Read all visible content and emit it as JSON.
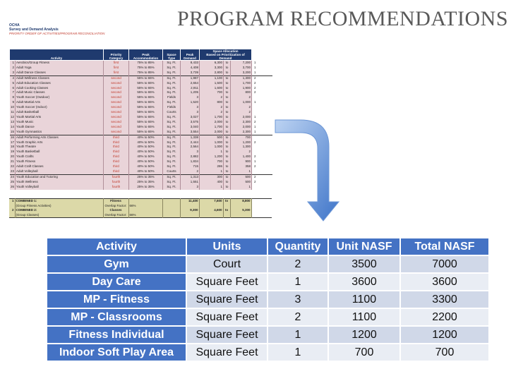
{
  "title": "PROGRAM RECOMMENDATIONS",
  "sheet": {
    "org": "OCHA",
    "subtitle": "Survey and Demand Analysis",
    "caption": "PRIORITY ORDER OF ACTIVITIES/PROGRAM RECONCILIATION",
    "headers": {
      "activity": "Activity",
      "priority": "Priority Category",
      "peak": "Peak Accommodation",
      "space_type": "Space Type",
      "peak_demand": "Peak Demand",
      "allocation": "Space Allocation",
      "allocation_sub": "Based on Prioritization of Demand"
    },
    "rows": [
      {
        "n": "1",
        "activity": "Aerobics/Group Fitness",
        "cat": "first",
        "acc": "75%  to  85%",
        "type": "Sq. Ft.",
        "demand": "8,433",
        "a1": "6,300",
        "to": "to",
        "a2": "7,200",
        "side": "1"
      },
      {
        "n": "2",
        "activity": "Adult Yoga",
        "cat": "first",
        "acc": "75%  to  85%",
        "type": "Sq. Ft.",
        "demand": "4,408",
        "a1": "3,300",
        "to": "to",
        "a2": "3,700",
        "side": "1"
      },
      {
        "n": "3",
        "activity": "Adult Dance Classes",
        "cat": "first",
        "acc": "75%  to  85%",
        "type": "Sq. Ft.",
        "demand": "3,739",
        "a1": "2,800",
        "to": "to",
        "a2": "3,200",
        "side": "1"
      },
      {
        "n": "4",
        "activity": "Adult Wellness Classes",
        "cat": "second",
        "acc": "55%  to  65%",
        "type": "Sq. Ft.",
        "demand": "1,987",
        "a1": "1,100",
        "to": "to",
        "a2": "1,300",
        "side": "2"
      },
      {
        "n": "5",
        "activity": "Adult Education Classes",
        "cat": "second",
        "acc": "55%  to  65%",
        "type": "Sq. Ft.",
        "demand": "2,654",
        "a1": "1,500",
        "to": "to",
        "a2": "1,700",
        "side": "2"
      },
      {
        "n": "6",
        "activity": "Adult Cooking Classes",
        "cat": "second",
        "acc": "55%  to  65%",
        "type": "Sq. Ft.",
        "demand": "2,911",
        "a1": "1,600",
        "to": "to",
        "a2": "1,900",
        "side": "2"
      },
      {
        "n": "7",
        "activity": "Adult Music Classes",
        "cat": "second",
        "acc": "55%  to  65%",
        "type": "Sq. Ft.",
        "demand": "1,205",
        "a1": "700",
        "to": "to",
        "a2": "800",
        "side": "2"
      },
      {
        "n": "8",
        "activity": "Youth Soccer (Outdoor)",
        "cat": "second",
        "acc": "55%  to  65%",
        "type": "Fields",
        "demand": "3",
        "a1": "2",
        "to": "to",
        "a2": "2",
        "side": ""
      },
      {
        "n": "9",
        "activity": "Adult Martial Arts",
        "cat": "second",
        "acc": "55%  to  65%",
        "type": "Sq. Ft.",
        "demand": "1,520",
        "a1": "800",
        "to": "to",
        "a2": "1,000",
        "side": "1"
      },
      {
        "n": "10",
        "activity": "Youth Soccer (Indoor)",
        "cat": "second",
        "acc": "55%  to  65%",
        "type": "Fields",
        "demand": "3",
        "a1": "2",
        "to": "to",
        "a2": "2",
        "side": ""
      },
      {
        "n": "11",
        "activity": "Adult Basketball",
        "cat": "second",
        "acc": "55%  to  65%",
        "type": "Courts",
        "demand": "3",
        "a1": "2",
        "to": "to",
        "a2": "2",
        "side": ""
      },
      {
        "n": "12",
        "activity": "Youth Martial Arts",
        "cat": "second",
        "acc": "55%  to  65%",
        "type": "Sq. Ft.",
        "demand": "3,027",
        "a1": "1,700",
        "to": "to",
        "a2": "2,000",
        "side": "1"
      },
      {
        "n": "13",
        "activity": "Youth Music",
        "cat": "second",
        "acc": "55%  to  65%",
        "type": "Sq. Ft.",
        "demand": "3,575",
        "a1": "2,000",
        "to": "to",
        "a2": "2,300",
        "side": "2"
      },
      {
        "n": "14",
        "activity": "Youth Dance",
        "cat": "second",
        "acc": "55%  to  65%",
        "type": "Sq. Ft.",
        "demand": "3,040",
        "a1": "1,700",
        "to": "to",
        "a2": "2,000",
        "side": "1"
      },
      {
        "n": "15",
        "activity": "Youth Gymnastics",
        "cat": "second",
        "acc": "55%  to  65%",
        "type": "Sq. Ft.",
        "demand": "3,554",
        "a1": "2,000",
        "to": "to",
        "a2": "2,300",
        "side": "1"
      },
      {
        "n": "16",
        "activity": "Adult Performing Arts Classes",
        "cat": "third",
        "acc": "40%  to  50%",
        "type": "Sq. Ft.",
        "demand": "1,338",
        "a1": "500",
        "to": "to",
        "a2": "700",
        "side": ""
      },
      {
        "n": "17",
        "activity": "Youth Graphic Arts",
        "cat": "third",
        "acc": "40%  to  50%",
        "type": "Sq. Ft.",
        "demand": "2,444",
        "a1": "1,000",
        "to": "to",
        "a2": "1,200",
        "side": "2"
      },
      {
        "n": "18",
        "activity": "Youth Theatre",
        "cat": "third",
        "acc": "40%  to  50%",
        "type": "Sq. Ft.",
        "demand": "2,564",
        "a1": "1,000",
        "to": "to",
        "a2": "1,300",
        "side": ""
      },
      {
        "n": "19",
        "activity": "Youth Basketball",
        "cat": "third",
        "acc": "40%  to  50%",
        "type": "Sq. Ft.",
        "demand": "3",
        "a1": "1",
        "to": "to",
        "a2": "2",
        "side": ""
      },
      {
        "n": "20",
        "activity": "Youth Crafts",
        "cat": "third",
        "acc": "40%  to  50%",
        "type": "Sq. Ft.",
        "demand": "2,882",
        "a1": "1,200",
        "to": "to",
        "a2": "1,400",
        "side": "2"
      },
      {
        "n": "21",
        "activity": "Youth Fitness",
        "cat": "third",
        "acc": "40%  to  50%",
        "type": "Sq. Ft.",
        "demand": "1,834",
        "a1": "700",
        "to": "to",
        "a2": "900",
        "side": "1"
      },
      {
        "n": "22",
        "activity": "Adult Craft Classes",
        "cat": "third",
        "acc": "40%  to  50%",
        "type": "Sq. Ft.",
        "demand": "715",
        "a1": "286",
        "to": "to",
        "a2": "358",
        "side": "2"
      },
      {
        "n": "23",
        "activity": "Adult Volleyball",
        "cat": "third",
        "acc": "40%  to  50%",
        "type": "Courts",
        "demand": "2",
        "a1": "1",
        "to": "to",
        "a2": "1",
        "side": ""
      },
      {
        "n": "24",
        "activity": "Youth Education and Tutoring",
        "cat": "fourth",
        "acc": "25%  to  35%",
        "type": "Sq. Ft.",
        "demand": "1,313",
        "a1": "300",
        "to": "to",
        "a2": "500",
        "side": "2"
      },
      {
        "n": "25",
        "activity": "Youth Wellness",
        "cat": "fourth",
        "acc": "25%  to  35%",
        "type": "Sq. Ft.",
        "demand": "1,551",
        "a1": "400",
        "to": "to",
        "a2": "500",
        "side": "2"
      },
      {
        "n": "26",
        "activity": "Youth Volleyball",
        "cat": "fourth",
        "acc": "25%  to  35%",
        "type": "Sq. Ft.",
        "demand": "3",
        "a1": "1",
        "to": "to",
        "a2": "1",
        "side": ""
      }
    ],
    "combined": [
      {
        "n": "1",
        "label": "COMBINED 1:",
        "cat": "Fitness",
        "demand": "11,400",
        "a1": "7,600",
        "to": "to",
        "a2": "8,800"
      },
      {
        "n": "",
        "label": "(Group Fitness Activities)",
        "cat": "Overlap Factor:",
        "pct": "66%",
        "demand": "",
        "a1": "",
        "to": "",
        "a2": ""
      },
      {
        "n": "2",
        "label": "COMBINED 2:",
        "cat": "Classes",
        "demand": "9,300",
        "a1": "4,600",
        "to": "to",
        "a2": "5,300"
      },
      {
        "n": "",
        "label": "(Group Classes)",
        "cat": "Overlap Factor:",
        "pct": "66%",
        "demand": "",
        "a1": "",
        "to": "",
        "a2": ""
      }
    ]
  },
  "summary": {
    "headers": [
      "Activity",
      "Units",
      "Quantity",
      "Unit NASF",
      "Total NASF"
    ],
    "rows": [
      {
        "activity": "Gym",
        "units": "Court",
        "quantity": "2",
        "unit_nasf": "3500",
        "total_nasf": "7000"
      },
      {
        "activity": "Day Care",
        "units": "Square Feet",
        "quantity": "1",
        "unit_nasf": "3600",
        "total_nasf": "3600"
      },
      {
        "activity": "MP -  Fitness",
        "units": "Square Feet",
        "quantity": "3",
        "unit_nasf": "1100",
        "total_nasf": "3300"
      },
      {
        "activity": "MP - Classrooms",
        "units": "Square Feet",
        "quantity": "2",
        "unit_nasf": "1100",
        "total_nasf": "2200"
      },
      {
        "activity": "Fitness Individual",
        "units": "Square Feet",
        "quantity": "1",
        "unit_nasf": "1200",
        "total_nasf": "1200"
      },
      {
        "activity": "Indoor Soft Play Area",
        "units": "Square Feet",
        "quantity": "1",
        "unit_nasf": "700",
        "total_nasf": "700"
      }
    ]
  },
  "colors": {
    "header_blue": "#4472c4",
    "row_even": "#d0d8e8",
    "row_odd": "#e9edf4",
    "pink": "#e9d4d9",
    "olive": "#dcd9a8",
    "navy": "#1f3a6e"
  }
}
